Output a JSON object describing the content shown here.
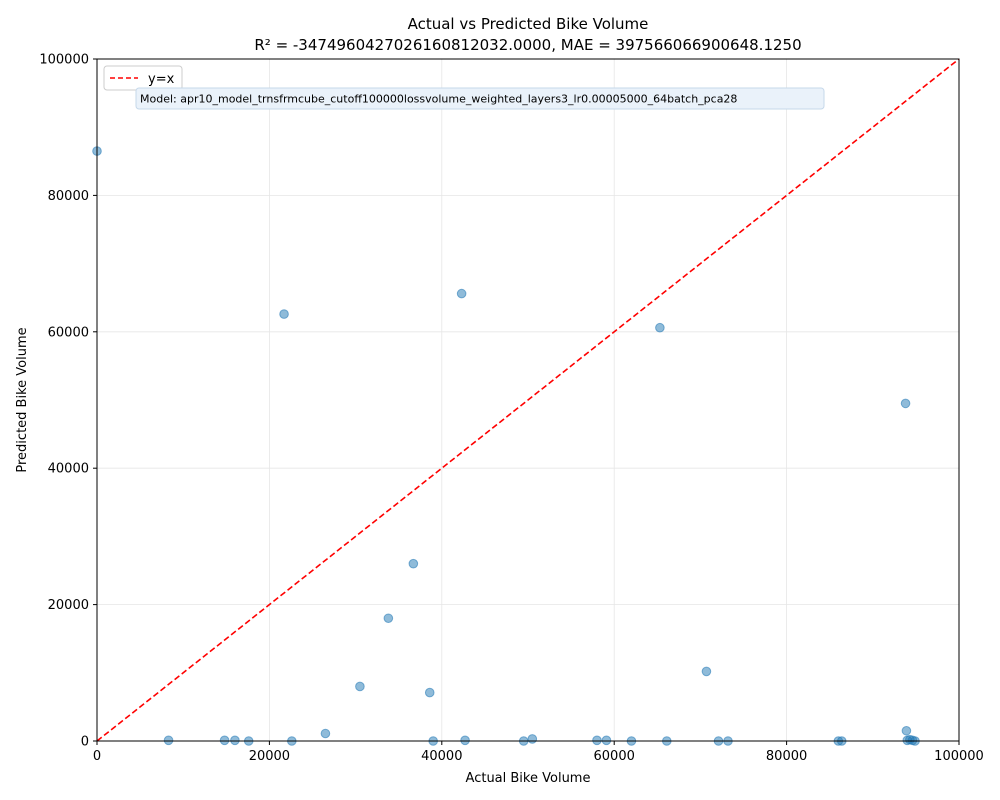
{
  "chart_data": {
    "type": "scatter",
    "title_line1": "Actual vs Predicted Bike Volume",
    "title_line2": "R² = -347496042702616081​2032.0000, MAE = 397566066900648.1250",
    "xlabel": "Actual Bike Volume",
    "ylabel": "Predicted Bike Volume",
    "xlim": [
      0,
      100000
    ],
    "ylim": [
      0,
      100000
    ],
    "x_ticks": [
      0,
      20000,
      40000,
      60000,
      80000,
      100000
    ],
    "y_ticks": [
      0,
      20000,
      40000,
      60000,
      80000,
      100000
    ],
    "grid": true,
    "legend": {
      "placement": "top-left",
      "entries": [
        {
          "label": "y=x",
          "color": "#e31a1c",
          "style": "dashed"
        }
      ]
    },
    "annotation": "Model: apr10_model_trnsfrmcube_cutoff100000lossvolume_weighted_layers3_lr0.00005000_64batch_pca28",
    "point_color": "#1f77b4",
    "reference_line_color": "#ff0000",
    "points": [
      {
        "x": 0,
        "y": 86500
      },
      {
        "x": 21700,
        "y": 62600
      },
      {
        "x": 42300,
        "y": 65600
      },
      {
        "x": 65300,
        "y": 60600
      },
      {
        "x": 93800,
        "y": 49500
      },
      {
        "x": 36700,
        "y": 26000
      },
      {
        "x": 33800,
        "y": 18000
      },
      {
        "x": 30500,
        "y": 8000
      },
      {
        "x": 38600,
        "y": 7100
      },
      {
        "x": 70700,
        "y": 10200
      },
      {
        "x": 26500,
        "y": 1100
      },
      {
        "x": 93900,
        "y": 1500
      },
      {
        "x": 8300,
        "y": 100
      },
      {
        "x": 14800,
        "y": 100
      },
      {
        "x": 16000,
        "y": 100
      },
      {
        "x": 17600,
        "y": 0
      },
      {
        "x": 22600,
        "y": 0
      },
      {
        "x": 39000,
        "y": 0
      },
      {
        "x": 42700,
        "y": 100
      },
      {
        "x": 49500,
        "y": 0
      },
      {
        "x": 50500,
        "y": 300
      },
      {
        "x": 58000,
        "y": 100
      },
      {
        "x": 59100,
        "y": 100
      },
      {
        "x": 62000,
        "y": 0
      },
      {
        "x": 66100,
        "y": 0
      },
      {
        "x": 72100,
        "y": 0
      },
      {
        "x": 73200,
        "y": 0
      },
      {
        "x": 86000,
        "y": 0
      },
      {
        "x": 86400,
        "y": 0
      },
      {
        "x": 94000,
        "y": 100
      },
      {
        "x": 94300,
        "y": 200
      },
      {
        "x": 94600,
        "y": 100
      },
      {
        "x": 94900,
        "y": 0
      }
    ]
  }
}
